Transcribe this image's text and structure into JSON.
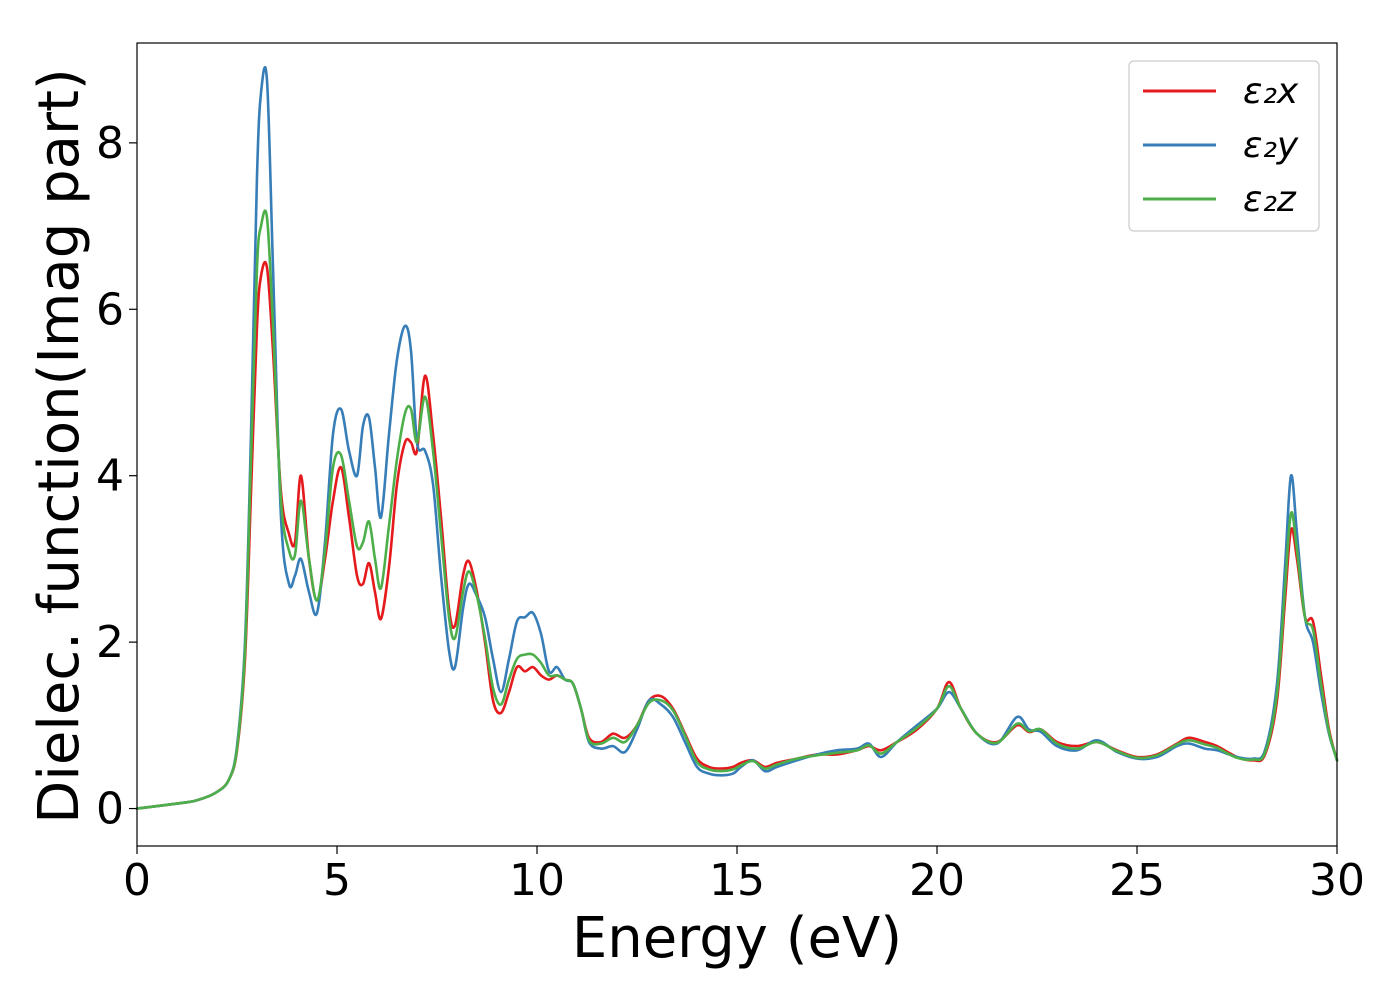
{
  "chart_data": {
    "type": "line",
    "title": "",
    "xlabel": "Energy (eV)",
    "ylabel": "Dielec. function(Imag part)",
    "xlim": [
      0,
      30
    ],
    "ylim": [
      -0.45,
      9.2
    ],
    "xticks": [
      0,
      5,
      10,
      15,
      20,
      25,
      30
    ],
    "yticks": [
      0,
      2,
      4,
      6,
      8
    ],
    "grid": false,
    "legend_position": "top-right",
    "series": [
      {
        "name": "ε₂x",
        "color": "#e41a1c",
        "x": [
          0,
          1,
          1.5,
          2,
          2.3,
          2.5,
          2.7,
          2.85,
          3.0,
          3.1,
          3.25,
          3.4,
          3.6,
          3.8,
          3.95,
          4.1,
          4.3,
          4.5,
          4.7,
          4.9,
          5.1,
          5.3,
          5.5,
          5.65,
          5.8,
          5.95,
          6.1,
          6.3,
          6.5,
          6.7,
          6.85,
          7.0,
          7.2,
          7.4,
          7.6,
          7.8,
          7.95,
          8.15,
          8.3,
          8.5,
          8.7,
          8.9,
          9.1,
          9.3,
          9.5,
          9.7,
          9.9,
          10.1,
          10.3,
          10.5,
          10.7,
          10.9,
          11.1,
          11.3,
          11.6,
          11.9,
          12.2,
          12.5,
          12.8,
          13.1,
          13.4,
          13.7,
          14.0,
          14.3,
          14.6,
          14.9,
          15.1,
          15.4,
          15.7,
          16.0,
          16.5,
          17.0,
          17.5,
          18.0,
          18.3,
          18.6,
          19.0,
          19.5,
          20.0,
          20.3,
          20.6,
          21.0,
          21.5,
          22.0,
          22.3,
          22.6,
          23.0,
          23.5,
          24.0,
          24.5,
          25.0,
          25.5,
          26.0,
          26.3,
          26.7,
          27.0,
          27.5,
          27.9,
          28.2,
          28.5,
          28.7,
          28.85,
          29.0,
          29.2,
          29.4,
          29.6,
          29.8,
          30.0
        ],
        "values": [
          0,
          0.06,
          0.1,
          0.2,
          0.35,
          0.7,
          1.8,
          3.8,
          5.8,
          6.4,
          6.5,
          5.5,
          3.8,
          3.3,
          3.2,
          4.0,
          3.0,
          2.5,
          3.0,
          3.7,
          4.1,
          3.5,
          2.8,
          2.7,
          2.95,
          2.6,
          2.28,
          2.9,
          3.9,
          4.4,
          4.4,
          4.3,
          5.2,
          4.5,
          3.5,
          2.4,
          2.2,
          2.8,
          2.97,
          2.6,
          2.0,
          1.3,
          1.15,
          1.4,
          1.7,
          1.65,
          1.7,
          1.6,
          1.55,
          1.6,
          1.55,
          1.5,
          1.2,
          0.85,
          0.8,
          0.9,
          0.85,
          1.0,
          1.3,
          1.35,
          1.2,
          0.9,
          0.6,
          0.5,
          0.48,
          0.5,
          0.55,
          0.58,
          0.5,
          0.55,
          0.6,
          0.65,
          0.65,
          0.7,
          0.75,
          0.7,
          0.8,
          0.95,
          1.2,
          1.52,
          1.2,
          0.9,
          0.8,
          1.0,
          0.92,
          0.95,
          0.8,
          0.75,
          0.8,
          0.7,
          0.62,
          0.65,
          0.78,
          0.85,
          0.8,
          0.75,
          0.62,
          0.58,
          0.65,
          1.3,
          2.5,
          3.35,
          3.0,
          2.3,
          2.25,
          1.6,
          0.95,
          0.58
        ]
      },
      {
        "name": "ε₂y",
        "color": "#377eb8",
        "x": [
          0,
          1,
          1.5,
          2,
          2.3,
          2.5,
          2.7,
          2.85,
          3.0,
          3.1,
          3.25,
          3.4,
          3.6,
          3.8,
          3.95,
          4.1,
          4.3,
          4.5,
          4.7,
          4.9,
          5.1,
          5.3,
          5.5,
          5.65,
          5.8,
          5.95,
          6.1,
          6.3,
          6.5,
          6.7,
          6.85,
          7.0,
          7.2,
          7.4,
          7.6,
          7.8,
          7.95,
          8.15,
          8.3,
          8.5,
          8.7,
          8.9,
          9.1,
          9.3,
          9.5,
          9.7,
          9.9,
          10.1,
          10.3,
          10.5,
          10.7,
          10.9,
          11.1,
          11.3,
          11.6,
          11.9,
          12.2,
          12.5,
          12.8,
          13.1,
          13.4,
          13.7,
          14.0,
          14.3,
          14.6,
          14.9,
          15.1,
          15.4,
          15.7,
          16.0,
          16.5,
          17.0,
          17.5,
          18.0,
          18.3,
          18.6,
          19.0,
          19.5,
          20.0,
          20.3,
          20.6,
          21.0,
          21.5,
          22.0,
          22.3,
          22.6,
          23.0,
          23.5,
          24.0,
          24.5,
          25.0,
          25.5,
          26.0,
          26.3,
          26.7,
          27.0,
          27.5,
          27.9,
          28.2,
          28.5,
          28.7,
          28.85,
          29.0,
          29.2,
          29.4,
          29.6,
          29.8,
          30.0
        ],
        "values": [
          0,
          0.06,
          0.1,
          0.2,
          0.35,
          0.75,
          2.0,
          4.5,
          7.6,
          8.6,
          8.75,
          6.5,
          3.5,
          2.7,
          2.8,
          3.0,
          2.6,
          2.35,
          3.2,
          4.5,
          4.8,
          4.3,
          4.0,
          4.6,
          4.7,
          4.1,
          3.5,
          4.5,
          5.4,
          5.8,
          5.5,
          4.4,
          4.3,
          3.9,
          2.8,
          1.9,
          1.7,
          2.4,
          2.7,
          2.55,
          2.3,
          1.8,
          1.4,
          1.8,
          2.25,
          2.3,
          2.35,
          2.1,
          1.65,
          1.7,
          1.55,
          1.5,
          1.2,
          0.8,
          0.72,
          0.75,
          0.68,
          0.95,
          1.3,
          1.25,
          1.1,
          0.8,
          0.5,
          0.42,
          0.4,
          0.42,
          0.5,
          0.58,
          0.45,
          0.5,
          0.58,
          0.65,
          0.7,
          0.72,
          0.78,
          0.62,
          0.8,
          1.0,
          1.2,
          1.4,
          1.2,
          0.9,
          0.78,
          1.1,
          0.95,
          0.92,
          0.75,
          0.7,
          0.82,
          0.68,
          0.6,
          0.62,
          0.75,
          0.78,
          0.72,
          0.7,
          0.62,
          0.6,
          0.7,
          1.5,
          2.9,
          4.0,
          3.3,
          2.3,
          2.0,
          1.4,
          0.9,
          0.58
        ]
      },
      {
        "name": "ε₂z",
        "color": "#4daf4a",
        "x": [
          0,
          1,
          1.5,
          2,
          2.3,
          2.5,
          2.7,
          2.85,
          3.0,
          3.1,
          3.25,
          3.4,
          3.6,
          3.8,
          3.95,
          4.1,
          4.3,
          4.5,
          4.7,
          4.9,
          5.1,
          5.3,
          5.5,
          5.65,
          5.8,
          5.95,
          6.1,
          6.3,
          6.5,
          6.7,
          6.85,
          7.0,
          7.2,
          7.4,
          7.6,
          7.8,
          7.95,
          8.15,
          8.3,
          8.5,
          8.7,
          8.9,
          9.1,
          9.3,
          9.5,
          9.7,
          9.9,
          10.1,
          10.3,
          10.5,
          10.7,
          10.9,
          11.1,
          11.3,
          11.6,
          11.9,
          12.2,
          12.5,
          12.8,
          13.1,
          13.4,
          13.7,
          14.0,
          14.3,
          14.6,
          14.9,
          15.1,
          15.4,
          15.7,
          16.0,
          16.5,
          17.0,
          17.5,
          18.0,
          18.3,
          18.6,
          19.0,
          19.5,
          20.0,
          20.3,
          20.6,
          21.0,
          21.5,
          22.0,
          22.3,
          22.6,
          23.0,
          23.5,
          24.0,
          24.5,
          25.0,
          25.5,
          26.0,
          26.3,
          26.7,
          27.0,
          27.5,
          27.9,
          28.2,
          28.5,
          28.7,
          28.85,
          29.0,
          29.2,
          29.4,
          29.6,
          29.8,
          30.0
        ],
        "values": [
          0,
          0.06,
          0.1,
          0.2,
          0.35,
          0.72,
          1.9,
          4.2,
          6.5,
          7.0,
          7.1,
          5.8,
          3.7,
          3.1,
          3.05,
          3.7,
          3.0,
          2.5,
          3.1,
          4.1,
          4.25,
          3.7,
          3.15,
          3.2,
          3.45,
          3.0,
          2.65,
          3.4,
          4.2,
          4.75,
          4.8,
          4.4,
          4.95,
          4.3,
          3.3,
          2.3,
          2.05,
          2.6,
          2.85,
          2.55,
          2.05,
          1.45,
          1.25,
          1.55,
          1.8,
          1.85,
          1.85,
          1.75,
          1.6,
          1.6,
          1.55,
          1.5,
          1.2,
          0.82,
          0.78,
          0.85,
          0.8,
          1.0,
          1.27,
          1.3,
          1.18,
          0.88,
          0.56,
          0.47,
          0.45,
          0.47,
          0.52,
          0.57,
          0.48,
          0.53,
          0.6,
          0.64,
          0.67,
          0.7,
          0.76,
          0.66,
          0.8,
          0.97,
          1.2,
          1.47,
          1.2,
          0.9,
          0.79,
          1.02,
          0.93,
          0.95,
          0.78,
          0.72,
          0.8,
          0.69,
          0.61,
          0.64,
          0.77,
          0.82,
          0.77,
          0.73,
          0.61,
          0.59,
          0.67,
          1.38,
          2.65,
          3.55,
          3.1,
          2.3,
          2.15,
          1.5,
          0.92,
          0.58
        ]
      }
    ]
  }
}
